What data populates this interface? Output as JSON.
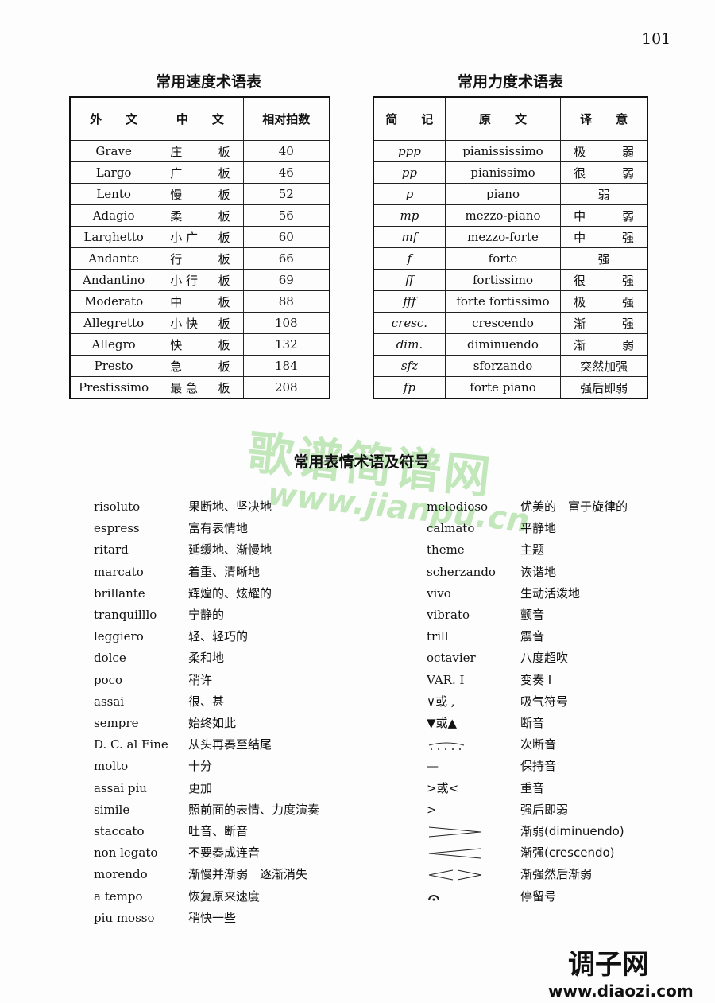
{
  "page_number": "101",
  "tempo_table": {
    "title": "常用速度术语表",
    "headers": [
      "外　　文",
      "中　　文",
      "相对拍数"
    ],
    "rows": [
      [
        "Grave",
        "庄",
        "板",
        "40"
      ],
      [
        "Largo",
        "广",
        "板",
        "46"
      ],
      [
        "Lento",
        "慢",
        "板",
        "52"
      ],
      [
        "Adagio",
        "柔",
        "板",
        "56"
      ],
      [
        "Larghetto",
        "小 广",
        "板",
        "60"
      ],
      [
        "Andante",
        "行",
        "板",
        "66"
      ],
      [
        "Andantino",
        "小 行",
        "板",
        "69"
      ],
      [
        "Moderato",
        "中",
        "板",
        "88"
      ],
      [
        "Allegretto",
        "小 快",
        "板",
        "108"
      ],
      [
        "Allegro",
        "快",
        "板",
        "132"
      ],
      [
        "Presto",
        "急",
        "板",
        "184"
      ],
      [
        "Prestissimo",
        "最 急",
        "板",
        "208"
      ]
    ]
  },
  "dynamics_table": {
    "title": "常用力度术语表",
    "headers": [
      "简　　记",
      "原　　文",
      "译　　意"
    ],
    "rows": [
      [
        "ppp",
        "pianississimo",
        "极",
        "弱"
      ],
      [
        "pp",
        "pianissimo",
        "很",
        "弱"
      ],
      [
        "p",
        "piano",
        "弱",
        ""
      ],
      [
        "mp",
        "mezzo-piano",
        "中",
        "弱"
      ],
      [
        "mf",
        "mezzo-forte",
        "中",
        "强"
      ],
      [
        "f",
        "forte",
        "强",
        ""
      ],
      [
        "ff",
        "fortissimo",
        "很",
        "强"
      ],
      [
        "fff",
        "forte fortissimo",
        "极",
        "强"
      ],
      [
        "cresc.",
        "crescendo",
        "渐",
        "强"
      ],
      [
        "dim.",
        "diminuendo",
        "渐",
        "弱"
      ],
      [
        "sfz",
        "sforzando",
        "突然加强",
        ""
      ],
      [
        "fp",
        "forte piano",
        "强后即弱",
        ""
      ]
    ]
  },
  "expression": {
    "title": "常用表情术语及符号",
    "left": [
      [
        "risoluto",
        "果断地、坚决地"
      ],
      [
        "espress",
        "富有表情地"
      ],
      [
        "ritard",
        "延缓地、渐慢地"
      ],
      [
        "marcato",
        "着重、清晰地"
      ],
      [
        "brillante",
        "辉煌的、炫耀的"
      ],
      [
        "tranquilllo",
        "宁静的"
      ],
      [
        "leggiero",
        "轻、轻巧的"
      ],
      [
        "dolce",
        "柔和地"
      ],
      [
        "poco",
        "稍许"
      ],
      [
        "assai",
        "很、甚"
      ],
      [
        "sempre",
        "始终如此"
      ],
      [
        "D. C. al Fine",
        "从头再奏至结尾"
      ],
      [
        "molto",
        "十分"
      ],
      [
        "assai piu",
        "更加"
      ],
      [
        "simile",
        "照前面的表情、力度演奏"
      ],
      [
        "staccato",
        "吐音、断音"
      ],
      [
        "non legato",
        "不要奏成连音"
      ],
      [
        "morendo",
        "渐慢并渐弱　逐渐消失"
      ],
      [
        "a tempo",
        "恢复原来速度"
      ],
      [
        "piu mosso",
        "稍快一些"
      ]
    ],
    "right": [
      {
        "term": "melodioso",
        "meaning": "优美的　富于旋律的"
      },
      {
        "term": "calmato",
        "meaning": "平静地"
      },
      {
        "term": "theme",
        "meaning": "主题"
      },
      {
        "term": "scherzando",
        "meaning": "诙谐地"
      },
      {
        "term": "vivo",
        "meaning": "生动活泼地"
      },
      {
        "term": "vibrato",
        "meaning": "颤音"
      },
      {
        "term": "trill",
        "meaning": "震音"
      },
      {
        "term": "octavier",
        "meaning": "八度超吹"
      },
      {
        "term": "VAR. I",
        "meaning": "变奏 I"
      },
      {
        "term": "∨或 ,",
        "meaning": "吸气符号"
      },
      {
        "term": "▼或▲",
        "meaning": "断音"
      },
      {
        "symbol": "dotted-slur",
        "meaning": "次断音"
      },
      {
        "term": "—",
        "meaning": "保持音"
      },
      {
        "term": ">或<",
        "meaning": "重音"
      },
      {
        "term": ">",
        "meaning": "强后即弱"
      },
      {
        "symbol": "decrescendo-hairpin",
        "meaning": "渐弱(diminuendo)"
      },
      {
        "symbol": "crescendo-hairpin",
        "meaning": "渐强(crescendo)"
      },
      {
        "symbol": "cresc-decresc-hairpin",
        "meaning": "渐强然后渐弱"
      },
      {
        "symbol": "fermata",
        "meaning": "停留号"
      }
    ]
  },
  "watermarks": {
    "jianpu": "歌谱简谱网",
    "jianpu_url": "www.jianpu.cn",
    "diaozi": "调子网",
    "diaozi_url": "www.diaozi.com"
  },
  "colors": {
    "watermark_green": "#50be3c"
  }
}
